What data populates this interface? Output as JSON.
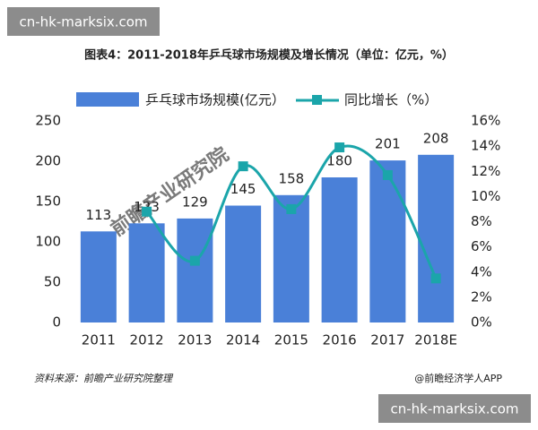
{
  "watermarks": [
    "cn-hk-marksix.com",
    "cn-hk-marksix.com"
  ],
  "chart_data": {
    "type": "bar-line",
    "title": "图表4：2011-2018年乒乓球市场规模及增长情况（单位：亿元，%）",
    "watermark": "前瞻产业研究院",
    "source": "资料来源：前瞻产业研究院整理",
    "credit": "@前瞻经济学人APP",
    "categories": [
      "2011",
      "2012",
      "2013",
      "2014",
      "2015",
      "2016",
      "2017",
      "2018E"
    ],
    "series": [
      {
        "name": "乒乓球市场规模(亿元）",
        "color": "#4a80d8",
        "type": "bar",
        "values": [
          113,
          123,
          129,
          145,
          158,
          180,
          201,
          208
        ]
      },
      {
        "name": "同比增长（%）",
        "color": "#1ba5aa",
        "type": "line",
        "axis": "y2",
        "values": [
          null,
          8.8,
          4.9,
          12.4,
          9.0,
          13.9,
          11.7,
          3.5
        ]
      }
    ],
    "ylim": [
      0,
      250
    ],
    "yticks": [
      0,
      50,
      100,
      150,
      200,
      250
    ],
    "y2lim": [
      0,
      16
    ],
    "y2ticks": [
      {
        "value": 0,
        "label": "0%"
      },
      {
        "value": 2,
        "label": "2%"
      },
      {
        "value": 4,
        "label": "4%"
      },
      {
        "value": 6,
        "label": "6%"
      },
      {
        "value": 8,
        "label": "8%"
      },
      {
        "value": 10,
        "label": "10%"
      },
      {
        "value": 12,
        "label": "12%"
      },
      {
        "value": 14,
        "label": "14%"
      },
      {
        "value": 16,
        "label": "16%"
      }
    ],
    "legend": "top"
  }
}
